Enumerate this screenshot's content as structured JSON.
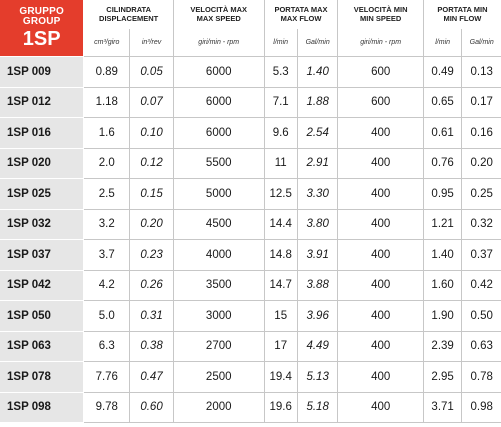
{
  "header": {
    "group_label_it": "GRUPPO",
    "group_label_en": "GROUP",
    "group_name": "1SP",
    "columns": [
      {
        "title_it": "CILINDRATA",
        "title_en": "DISPLACEMENT",
        "units": [
          "cm³/giro",
          "in³/rev"
        ]
      },
      {
        "title_it": "VELOCITÀ MAX",
        "title_en": "MAX SPEED",
        "units": [
          "giri/min - rpm"
        ]
      },
      {
        "title_it": "PORTATA MAX",
        "title_en": "MAX FLOW",
        "units": [
          "l/min",
          "Gal/min"
        ]
      },
      {
        "title_it": "VELOCITÀ MIN",
        "title_en": "MIN SPEED",
        "units": [
          "giri/min - rpm"
        ]
      },
      {
        "title_it": "PORTATA MIN",
        "title_en": "MIN FLOW",
        "units": [
          "l/min",
          "Gal/min"
        ]
      }
    ]
  },
  "rows": [
    {
      "model": "1SP 009",
      "cm3": "0.89",
      "in3": "0.05",
      "max_speed": "6000",
      "max_lmin": "5.3",
      "max_gal": "1.40",
      "min_speed": "600",
      "min_lmin": "0.49",
      "min_gal": "0.13"
    },
    {
      "model": "1SP 012",
      "cm3": "1.18",
      "in3": "0.07",
      "max_speed": "6000",
      "max_lmin": "7.1",
      "max_gal": "1.88",
      "min_speed": "600",
      "min_lmin": "0.65",
      "min_gal": "0.17"
    },
    {
      "model": "1SP 016",
      "cm3": "1.6",
      "in3": "0.10",
      "max_speed": "6000",
      "max_lmin": "9.6",
      "max_gal": "2.54",
      "min_speed": "400",
      "min_lmin": "0.61",
      "min_gal": "0.16"
    },
    {
      "model": "1SP 020",
      "cm3": "2.0",
      "in3": "0.12",
      "max_speed": "5500",
      "max_lmin": "11",
      "max_gal": "2.91",
      "min_speed": "400",
      "min_lmin": "0.76",
      "min_gal": "0.20"
    },
    {
      "model": "1SP 025",
      "cm3": "2.5",
      "in3": "0.15",
      "max_speed": "5000",
      "max_lmin": "12.5",
      "max_gal": "3.30",
      "min_speed": "400",
      "min_lmin": "0.95",
      "min_gal": "0.25"
    },
    {
      "model": "1SP 032",
      "cm3": "3.2",
      "in3": "0.20",
      "max_speed": "4500",
      "max_lmin": "14.4",
      "max_gal": "3.80",
      "min_speed": "400",
      "min_lmin": "1.21",
      "min_gal": "0.32"
    },
    {
      "model": "1SP 037",
      "cm3": "3.7",
      "in3": "0.23",
      "max_speed": "4000",
      "max_lmin": "14.8",
      "max_gal": "3.91",
      "min_speed": "400",
      "min_lmin": "1.40",
      "min_gal": "0.37"
    },
    {
      "model": "1SP 042",
      "cm3": "4.2",
      "in3": "0.26",
      "max_speed": "3500",
      "max_lmin": "14.7",
      "max_gal": "3.88",
      "min_speed": "400",
      "min_lmin": "1.60",
      "min_gal": "0.42"
    },
    {
      "model": "1SP 050",
      "cm3": "5.0",
      "in3": "0.31",
      "max_speed": "3000",
      "max_lmin": "15",
      "max_gal": "3.96",
      "min_speed": "400",
      "min_lmin": "1.90",
      "min_gal": "0.50"
    },
    {
      "model": "1SP 063",
      "cm3": "6.3",
      "in3": "0.38",
      "max_speed": "2700",
      "max_lmin": "17",
      "max_gal": "4.49",
      "min_speed": "400",
      "min_lmin": "2.39",
      "min_gal": "0.63"
    },
    {
      "model": "1SP 078",
      "cm3": "7.76",
      "in3": "0.47",
      "max_speed": "2500",
      "max_lmin": "19.4",
      "max_gal": "5.13",
      "min_speed": "400",
      "min_lmin": "2.95",
      "min_gal": "0.78"
    },
    {
      "model": "1SP 098",
      "cm3": "9.78",
      "in3": "0.60",
      "max_speed": "2000",
      "max_lmin": "19.6",
      "max_gal": "5.18",
      "min_speed": "400",
      "min_lmin": "3.71",
      "min_gal": "0.98"
    }
  ],
  "colors": {
    "header_red": "#e43d2c",
    "model_cell_gray": "#e6e6e6",
    "grid_line": "#c7c7c7"
  }
}
